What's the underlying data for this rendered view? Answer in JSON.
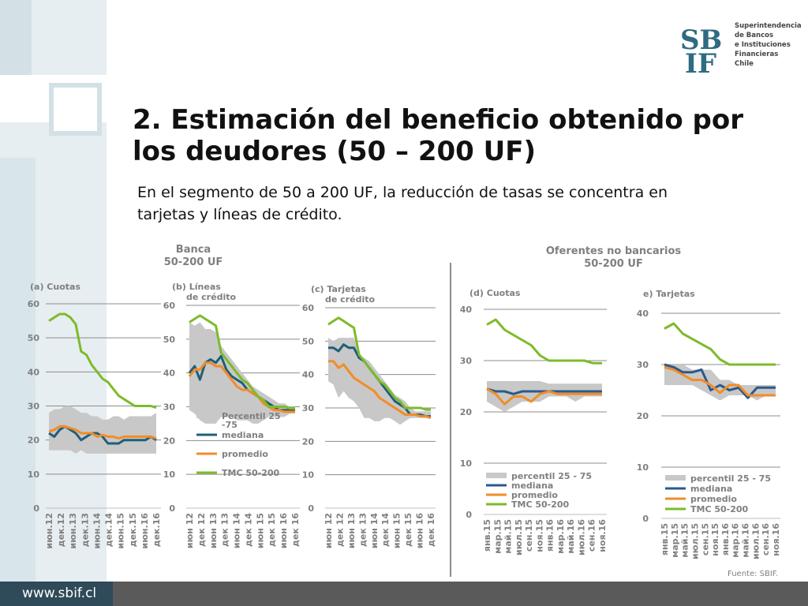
{
  "slide": {
    "title": "2. Estimación del beneficio obtenido por los deudores (50 – 200 UF)",
    "subtitle": "En el segmento de 50 a 200 UF, la reducción de tasas se concentra en tarjetas y líneas de crédito.",
    "group_banca": [
      "Banca",
      "50-200 UF"
    ],
    "group_nobanc": [
      "Oferentes no bancarios",
      "50-200 UF"
    ],
    "source": "Fuente: SBIF.",
    "url": "www.sbif.cl",
    "logo": {
      "mark": "SBIF",
      "lines": [
        "Superintendencia",
        "de Bancos",
        "e Instituciones",
        "Financieras",
        "Chile"
      ]
    }
  },
  "colors": {
    "band": "#c8c8c8",
    "mediana": "#1f5f7a",
    "mediana_nb": "#2b5a8c",
    "promedio": "#f28c28",
    "tmc": "#7dbb2a",
    "axis": "#7f7f7f"
  },
  "chart_data": [
    {
      "type": "line",
      "title": "(a) Cuotas",
      "ylim": [
        0,
        60
      ],
      "yticks": [
        0,
        10,
        20,
        30,
        40,
        50,
        60
      ],
      "xticks": [
        "июн.12",
        "дек.12",
        "июн.13",
        "дек.13",
        "июн.14",
        "дек.14",
        "июн.15",
        "дек.15",
        "июн.16",
        "дек.16"
      ],
      "legend": [],
      "series": [
        {
          "name": "Percentil 25-75",
          "band": true,
          "lower": [
            17,
            17,
            17,
            17,
            17,
            16,
            17,
            16,
            16,
            16,
            16,
            16,
            16,
            16,
            16,
            16,
            16,
            16,
            16,
            16,
            16
          ],
          "upper": [
            28,
            29,
            29,
            30,
            30,
            29,
            28,
            28,
            27,
            27,
            26,
            26,
            27,
            27,
            26,
            27,
            27,
            27,
            27,
            27,
            28
          ]
        },
        {
          "name": "mediana",
          "values": [
            22,
            21,
            23,
            24,
            23,
            22,
            20,
            21,
            22,
            22,
            21,
            19,
            19,
            19,
            20,
            20,
            20,
            20,
            20,
            21,
            20
          ]
        },
        {
          "name": "promedio",
          "values": [
            22.5,
            23,
            24,
            24,
            23.5,
            23,
            22,
            22,
            22,
            21,
            21.5,
            21,
            21,
            20.5,
            21,
            21,
            21,
            21,
            21,
            21,
            20.5
          ]
        },
        {
          "name": "TMC 50-200",
          "values": [
            55,
            56,
            57,
            57,
            56,
            54,
            46,
            45,
            42,
            40,
            38,
            37,
            35,
            33,
            32,
            31,
            30,
            30,
            30,
            30,
            29.5
          ]
        }
      ]
    },
    {
      "type": "line",
      "title": "(b) Líneas de crédito",
      "ylim": [
        0,
        60
      ],
      "yticks": [
        0,
        10,
        20,
        30,
        40,
        50,
        60
      ],
      "xticks": [
        "июн 12",
        "дек 12",
        "июн 13",
        "дек 13",
        "июн 14",
        "дек 14",
        "июн 15",
        "дек 15",
        "июн 16",
        "дек 16"
      ],
      "legend": [
        "Percentil 25-75",
        "mediana",
        "promedio",
        "TMC 50-200"
      ],
      "series": [
        {
          "name": "Percentil 25-75",
          "band": true,
          "lower": [
            29,
            28,
            26,
            25,
            25,
            25,
            27,
            27,
            27,
            26,
            26,
            26,
            25,
            25,
            26,
            27,
            27,
            27,
            27,
            28,
            28
          ],
          "upper": [
            55,
            54,
            55,
            53,
            53,
            52,
            48,
            46,
            44,
            42,
            40,
            38,
            36,
            35,
            34,
            33,
            32,
            31,
            31,
            30,
            30
          ]
        },
        {
          "name": "mediana",
          "values": [
            40,
            42,
            38,
            43,
            44,
            43,
            45,
            41,
            39,
            38,
            37,
            35,
            34,
            33,
            32,
            31,
            30,
            29,
            29,
            29,
            29
          ]
        },
        {
          "name": "promedio",
          "values": [
            39,
            41,
            41,
            43,
            43,
            42,
            42,
            40,
            38,
            36,
            35,
            35,
            34,
            33,
            31,
            30,
            29,
            29,
            28.5,
            28.5,
            28.5
          ]
        },
        {
          "name": "TMC 50-200",
          "values": [
            55,
            56,
            57,
            56,
            55,
            54,
            46,
            44,
            42,
            40,
            38,
            37,
            35,
            33,
            32,
            30,
            30,
            30,
            30,
            29.5,
            29.5
          ]
        }
      ]
    },
    {
      "type": "line",
      "title": "(c) Tarjetas de crédito",
      "ylim": [
        0,
        60
      ],
      "yticks": [
        0,
        10,
        20,
        30,
        40,
        50,
        60
      ],
      "xticks": [
        "июн 12",
        "дек 12",
        "июн 13",
        "дек 13",
        "июн 14",
        "дек 14",
        "июн 15",
        "дек 15",
        "июн 16",
        "дек 16"
      ],
      "legend": [],
      "series": [
        {
          "name": "Percentil 25-75",
          "band": true,
          "lower": [
            38,
            37,
            33,
            35,
            33,
            32,
            30,
            27,
            27,
            26,
            26,
            27,
            27,
            26,
            25,
            26,
            27,
            27,
            27,
            27,
            27
          ],
          "upper": [
            51,
            50,
            51,
            51,
            51,
            51,
            46,
            45,
            44,
            42,
            40,
            38,
            36,
            34,
            33,
            32,
            30,
            29,
            29,
            29,
            29
          ]
        },
        {
          "name": "mediana",
          "values": [
            48,
            48,
            47,
            49,
            48,
            48,
            45,
            44,
            42,
            40,
            38,
            36,
            34,
            32,
            31,
            30,
            28,
            28,
            28,
            27.5,
            27.5
          ]
        },
        {
          "name": "promedio",
          "values": [
            44,
            44,
            42,
            43,
            41,
            39,
            38,
            37,
            36,
            35,
            33,
            32,
            31,
            30,
            29,
            28,
            28,
            28,
            27.5,
            27.5,
            27
          ]
        },
        {
          "name": "TMC 50-200",
          "values": [
            55,
            56,
            57,
            56,
            55,
            54,
            46,
            44,
            42,
            40,
            38,
            37,
            35,
            33,
            32,
            30,
            30,
            30,
            30,
            29.5,
            29.5
          ]
        }
      ]
    },
    {
      "type": "line",
      "title": "(d) Cuotas",
      "ylim": [
        0,
        40
      ],
      "yticks": [
        0,
        10,
        20,
        30,
        40
      ],
      "xticks": [
        "янв.15",
        "мар.15",
        "май.15",
        "июл.15",
        "сен.15",
        "ноя.15",
        "янв.16",
        "мар.16",
        "май.16",
        "июл.16",
        "сен.16",
        "ноя.16"
      ],
      "legend": [
        "percentil 25 - 75",
        "mediana",
        "promedio",
        "TMC 50-200"
      ],
      "series": [
        {
          "name": "percentil 25 - 75",
          "band": true,
          "lower": [
            22,
            21,
            20,
            21,
            22,
            22,
            22,
            23,
            23,
            23,
            22,
            23,
            23,
            23
          ],
          "upper": [
            26,
            26,
            26,
            26,
            26,
            26,
            26,
            25.5,
            25.5,
            25.5,
            25.5,
            25.5,
            25.5,
            25.5
          ]
        },
        {
          "name": "mediana",
          "values": [
            24.5,
            24,
            24,
            23.5,
            24,
            24,
            24,
            24,
            24,
            24,
            24,
            24,
            24,
            24
          ]
        },
        {
          "name": "promedio",
          "values": [
            24.5,
            23.5,
            21.5,
            23,
            23,
            22,
            23.5,
            24,
            23.5,
            23.5,
            23.5,
            23.5,
            23.5,
            23.5
          ]
        },
        {
          "name": "TMC 50-200",
          "values": [
            37,
            38,
            36,
            35,
            34,
            33,
            31,
            30,
            30,
            30,
            30,
            30,
            29.5,
            29.5
          ]
        }
      ]
    },
    {
      "type": "line",
      "title": "e) Tarjetas",
      "ylim": [
        0,
        40
      ],
      "yticks": [
        0,
        10,
        20,
        30,
        40
      ],
      "xticks": [
        "янв.15",
        "мар.15",
        "май.15",
        "июл.15",
        "сен.15",
        "ноя.15",
        "янв.16",
        "мар.16",
        "май.16",
        "июл.16",
        "сен.16",
        "ноя.16"
      ],
      "legend": [
        "percentil 25 - 75",
        "mediana",
        "promedio",
        "TMC 50-200"
      ],
      "series": [
        {
          "name": "percentil 25 - 75",
          "band": true,
          "lower": [
            26,
            26,
            26,
            26,
            25,
            24,
            23,
            24,
            24,
            24,
            23,
            24,
            24
          ],
          "upper": [
            30,
            30,
            30,
            29,
            29,
            29,
            27,
            27,
            26,
            26,
            26,
            26,
            26
          ]
        },
        {
          "name": "mediana",
          "values": [
            30,
            29.5,
            28.5,
            28.5,
            29,
            25,
            26,
            25,
            25.5,
            23.5,
            25.5,
            25.5,
            25.5
          ]
        },
        {
          "name": "promedio",
          "values": [
            29.5,
            29,
            28,
            27,
            27,
            26,
            24.5,
            26,
            26,
            24,
            24,
            24,
            24
          ]
        },
        {
          "name": "TMC 50-200",
          "values": [
            37,
            38,
            36,
            35,
            34,
            33,
            31,
            30,
            30,
            30,
            30,
            30,
            30
          ]
        }
      ]
    }
  ]
}
